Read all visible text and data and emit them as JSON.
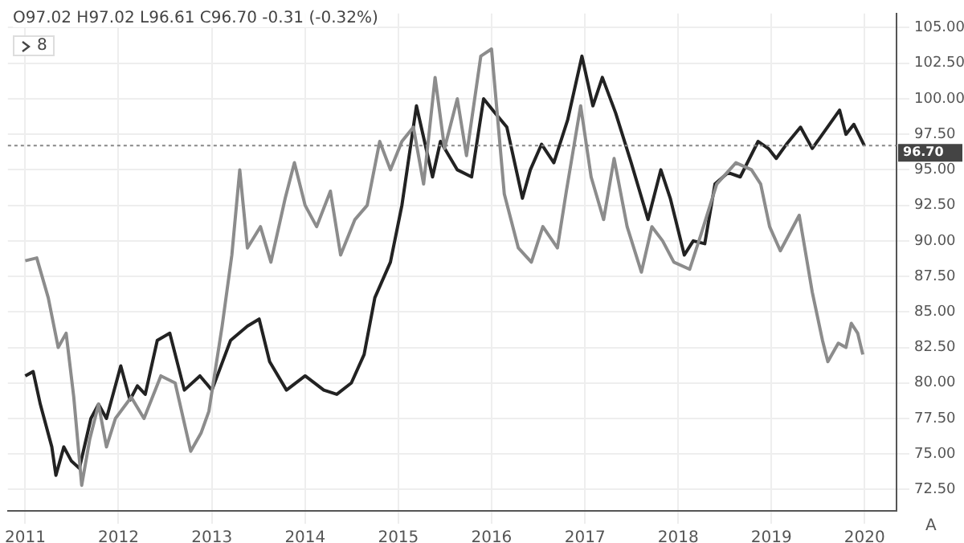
{
  "chart_data": {
    "type": "line",
    "annotations": [
      "O97.02 H97.02 L96.61 C96.70 -0.31 (-0.32%)",
      "8",
      "A"
    ],
    "series": [
      {
        "color": "#8c8c8c",
        "x": [
          "2011-01-01",
          "2011-02-15",
          "2011-04-01",
          "2011-05-10",
          "2011-06-10",
          "2011-07-10",
          "2011-08-10",
          "2011-09-10",
          "2011-10-15",
          "2011-11-15",
          "2011-12-20",
          "2012-02-20",
          "2012-04-10",
          "2012-06-15",
          "2012-08-10",
          "2012-10-10",
          "2012-11-20",
          "2012-12-20",
          "2013-02-10",
          "2013-03-20",
          "2013-04-20",
          "2013-05-20",
          "2013-07-10",
          "2013-08-20",
          "2013-10-15",
          "2013-11-20",
          "2014-01-01",
          "2014-02-15",
          "2014-04-10",
          "2014-05-20",
          "2014-07-15",
          "2014-09-01",
          "2014-10-20",
          "2014-12-01",
          "2015-01-15",
          "2015-03-01",
          "2015-04-10",
          "2015-05-25",
          "2015-07-01",
          "2015-08-20",
          "2015-09-25",
          "2015-11-20",
          "2016-01-01",
          "2016-02-20",
          "2016-04-15",
          "2016-06-05",
          "2016-07-20",
          "2016-09-15",
          "2016-10-20",
          "2016-12-15",
          "2017-01-25",
          "2017-03-15",
          "2017-04-25",
          "2017-06-15",
          "2017-08-10",
          "2017-09-20",
          "2017-11-01",
          "2017-12-15",
          "2018-02-15",
          "2018-04-01",
          "2018-06-01",
          "2018-08-15",
          "2018-10-15",
          "2018-11-20",
          "2018-12-25",
          "2019-02-05",
          "2019-04-20",
          "2019-06-10",
          "2019-07-20",
          "2019-08-10",
          "2019-09-20",
          "2019-10-20",
          "2019-11-10",
          "2019-12-05",
          "2019-12-25"
        ],
        "values": [
          88.6,
          88.8,
          86.0,
          82.5,
          83.5,
          79.0,
          72.8,
          76.0,
          78.5,
          75.5,
          77.5,
          79.0,
          77.5,
          80.5,
          80.0,
          75.2,
          76.5,
          78.0,
          84.0,
          89.0,
          95.0,
          89.5,
          91.0,
          88.5,
          93.0,
          95.5,
          92.5,
          91.0,
          93.5,
          89.0,
          91.5,
          92.5,
          97.0,
          95.0,
          97.0,
          98.0,
          94.0,
          101.5,
          96.5,
          100.0,
          96.0,
          103.0,
          103.5,
          93.3,
          89.5,
          88.5,
          91.0,
          89.5,
          93.5,
          99.5,
          94.5,
          91.5,
          95.8,
          91.0,
          87.8,
          91.0,
          90.0,
          88.5,
          88.0,
          90.5,
          94.0,
          95.5,
          95.0,
          94.0,
          91.0,
          89.3,
          91.8,
          86.4,
          83.0,
          81.5,
          82.8,
          82.5,
          84.2,
          83.5,
          82.0
        ]
      },
      {
        "color": "#222222",
        "x": [
          "2011-01-01",
          "2011-02-01",
          "2011-03-01",
          "2011-04-15",
          "2011-05-01",
          "2011-06-01",
          "2011-07-01",
          "2011-08-01",
          "2011-09-15",
          "2011-10-15",
          "2011-11-15",
          "2012-01-10",
          "2012-02-15",
          "2012-03-15",
          "2012-04-15",
          "2012-06-01",
          "2012-07-20",
          "2012-09-15",
          "2012-11-15",
          "2013-01-01",
          "2013-03-15",
          "2013-05-20",
          "2013-07-05",
          "2013-08-15",
          "2013-10-20",
          "2014-01-01",
          "2014-03-15",
          "2014-05-05",
          "2014-07-01",
          "2014-08-20",
          "2014-10-01",
          "2014-12-01",
          "2015-01-15",
          "2015-03-13",
          "2015-05-15",
          "2015-06-15",
          "2015-08-20",
          "2015-10-15",
          "2015-12-01",
          "2016-01-15",
          "2016-03-01",
          "2016-05-01",
          "2016-06-01",
          "2016-07-15",
          "2016-09-01",
          "2016-10-25",
          "2016-12-20",
          "2017-02-01",
          "2017-03-10",
          "2017-05-01",
          "2017-07-01",
          "2017-09-05",
          "2017-10-25",
          "2017-12-01",
          "2018-01-25",
          "2018-03-01",
          "2018-04-15",
          "2018-05-25",
          "2018-07-15",
          "2018-09-01",
          "2018-11-10",
          "2018-12-20",
          "2019-01-20",
          "2019-03-01",
          "2019-04-25",
          "2019-06-10",
          "2019-07-20",
          "2019-09-25",
          "2019-10-20",
          "2019-11-20",
          "2019-12-31"
        ],
        "values": [
          80.5,
          80.8,
          78.5,
          75.5,
          73.5,
          75.5,
          74.5,
          74.0,
          77.5,
          78.5,
          77.5,
          81.2,
          78.8,
          79.8,
          79.2,
          83.0,
          83.5,
          79.5,
          80.5,
          79.5,
          83.0,
          84.0,
          84.5,
          81.5,
          79.5,
          80.5,
          79.5,
          79.2,
          80.0,
          82.0,
          86.0,
          88.5,
          92.5,
          99.5,
          94.5,
          97.0,
          95.0,
          94.5,
          100.0,
          99.0,
          98.0,
          93.0,
          95.0,
          96.8,
          95.5,
          98.5,
          103.0,
          99.5,
          101.5,
          99.0,
          95.5,
          91.5,
          95.0,
          93.0,
          89.0,
          90.0,
          89.8,
          94.0,
          94.8,
          94.5,
          97.0,
          96.5,
          95.8,
          96.8,
          98.0,
          96.5,
          97.5,
          99.2,
          97.5,
          98.2,
          96.7
        ]
      }
    ],
    "xlim": [
      "2010-10-25",
      "2020-05-05"
    ],
    "xticks": [
      {
        "value": "2011-01-01",
        "label": "2011"
      },
      {
        "value": "2012-01-01",
        "label": "2012"
      },
      {
        "value": "2013-01-01",
        "label": "2013"
      },
      {
        "value": "2014-01-01",
        "label": "2014"
      },
      {
        "value": "2015-01-01",
        "label": "2015"
      },
      {
        "value": "2016-01-01",
        "label": "2016"
      },
      {
        "value": "2017-01-01",
        "label": "2017"
      },
      {
        "value": "2018-01-01",
        "label": "2018"
      },
      {
        "value": "2019-01-01",
        "label": "2019"
      },
      {
        "value": "2020-01-01",
        "label": "2020"
      }
    ],
    "ylim": [
      71,
      106
    ],
    "yticks": [
      {
        "value": 72.5,
        "label": "72.50"
      },
      {
        "value": 75,
        "label": "75.00"
      },
      {
        "value": 77.5,
        "label": "77.50"
      },
      {
        "value": 80,
        "label": "80.00"
      },
      {
        "value": 82.5,
        "label": "82.50"
      },
      {
        "value": 85,
        "label": "85.00"
      },
      {
        "value": 87.5,
        "label": "87.50"
      },
      {
        "value": 90,
        "label": "90.00"
      },
      {
        "value": 92.5,
        "label": "92.50"
      },
      {
        "value": 95,
        "label": "95.00"
      },
      {
        "value": 97.5,
        "label": "97.50"
      },
      {
        "value": 100,
        "label": "100.00"
      },
      {
        "value": 102.5,
        "label": "102.50"
      },
      {
        "value": 105,
        "label": "105.00"
      }
    ],
    "ref_lines": [
      {
        "axis": "y",
        "value": 96.7,
        "label": "96.70",
        "color": "#888888",
        "line_style": "dotted"
      }
    ],
    "grid": true,
    "marker": "none",
    "line_style": "solid"
  }
}
